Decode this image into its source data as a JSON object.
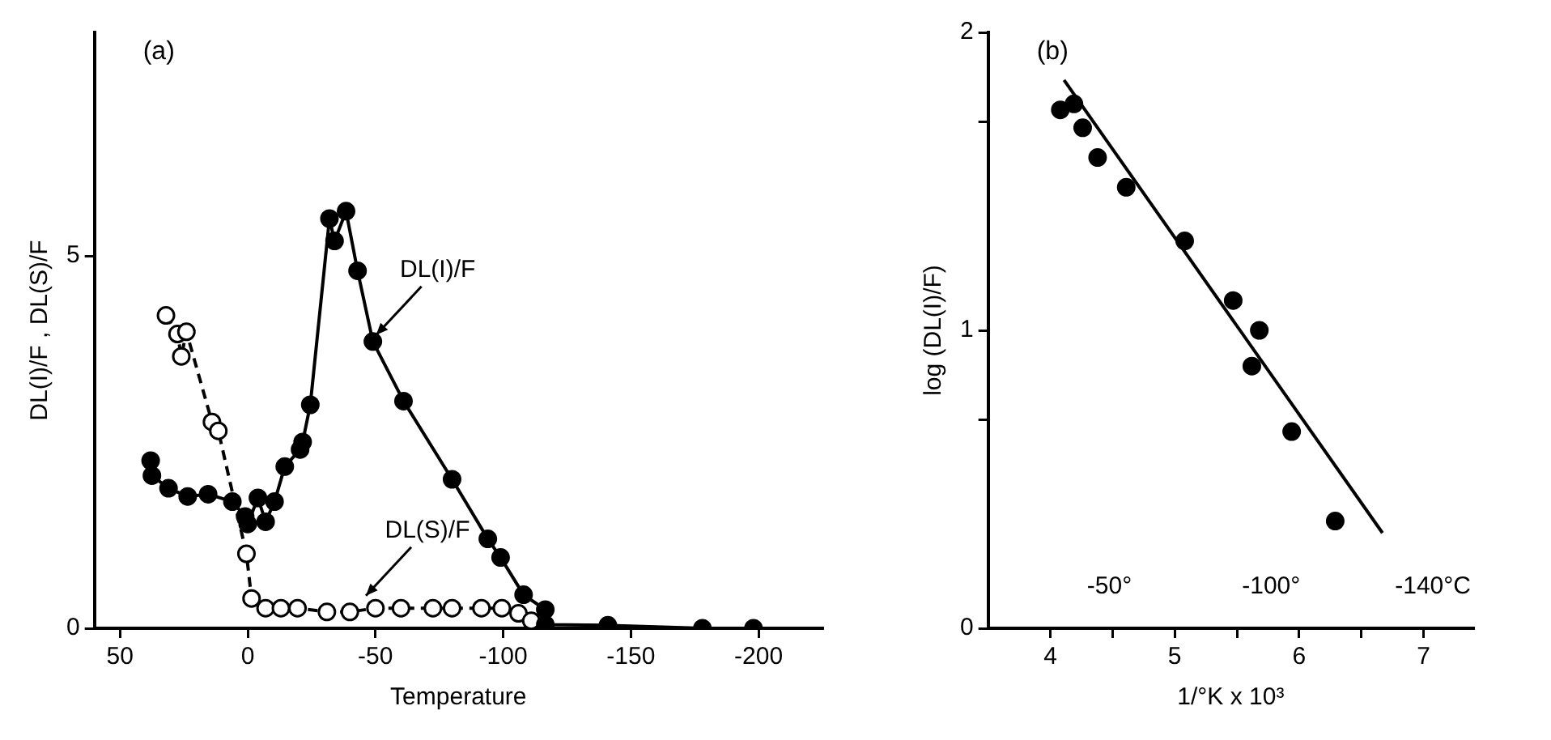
{
  "chart_data": [
    {
      "type": "line",
      "title": "(a)",
      "xlabel": "Temperature",
      "ylabel": "DL(I)/F , DL(S)/F",
      "xlim": [
        60,
        -225
      ],
      "xticks": [
        50,
        0,
        -50,
        -100,
        -150,
        -200
      ],
      "ylim": [
        0,
        8
      ],
      "yticks": [
        0,
        5
      ],
      "series": [
        {
          "color": "#000000",
          "marker": "circle",
          "line_style": "solid",
          "x": [
            38,
            37.5,
            31,
            23.5,
            15.5,
            6,
            1,
            0,
            -4,
            -7,
            -10.5,
            -14.5,
            -20.5,
            -21.5,
            -24.5,
            -32,
            -34,
            -38.5,
            -43,
            -49,
            -61,
            -80,
            -94,
            -99,
            -108,
            -116.5,
            -116.5,
            -141,
            -178,
            -198
          ],
          "values": [
            2.25,
            2.05,
            1.88,
            1.77,
            1.8,
            1.7,
            1.5,
            1.4,
            1.75,
            1.43,
            1.7,
            2.17,
            2.4,
            2.5,
            3.0,
            5.5,
            5.2,
            5.6,
            4.8,
            3.85,
            3.05,
            2.0,
            1.2,
            0.95,
            0.45,
            0.25,
            0.05,
            0.04,
            0,
            0
          ]
        },
        {
          "color": "#ffffff",
          "marker": "circle",
          "line_style": "dashed",
          "x": [
            32,
            27.5,
            26,
            24,
            14,
            11.5,
            0.5,
            -1.5,
            -7,
            -13,
            -19.5,
            -31,
            -40,
            -50,
            -60,
            -72.5,
            -80,
            -91.5,
            -99.5,
            -106,
            -111
          ],
          "values": [
            4.2,
            3.95,
            3.65,
            3.98,
            2.77,
            2.65,
            1.0,
            0.4,
            0.27,
            0.27,
            0.27,
            0.22,
            0.22,
            0.27,
            0.27,
            0.27,
            0.27,
            0.27,
            0.27,
            0.2,
            0.1
          ]
        }
      ],
      "annotations": [
        {
          "text": "DL(I)/F",
          "x": -49,
          "y": 3.85
        },
        {
          "text": "DL(S)/F",
          "x": -45,
          "y": 0.35
        }
      ]
    },
    {
      "type": "scatter",
      "title": "(b)",
      "xlabel": "1/°K x 10³",
      "ylabel": "log (DL(I)/F)",
      "xlim": [
        3.5,
        7.4
      ],
      "xticks": [
        4,
        {
          "value": 4.5,
          "label": null
        },
        5,
        {
          "value": 5.5,
          "label": null
        },
        6,
        {
          "value": 6.5,
          "label": null
        },
        7
      ],
      "ylim": [
        0,
        2
      ],
      "yticks": [
        0,
        {
          "value": 0.7,
          "label": null
        },
        1,
        {
          "value": 1.7,
          "label": null
        },
        2
      ],
      "annotations": [
        "-50°",
        "-100°",
        "-140°C"
      ],
      "series": [
        {
          "color": "#000000",
          "marker": "circle",
          "x": [
            4.08,
            4.19,
            4.26,
            4.38,
            4.61,
            5.08,
            5.47,
            5.68,
            5.62,
            5.94,
            6.29
          ],
          "values": [
            1.74,
            1.76,
            1.68,
            1.58,
            1.48,
            1.3,
            1.1,
            1.0,
            0.88,
            0.66,
            0.36
          ]
        },
        {
          "type": "line",
          "color": "#000000",
          "marker": "none",
          "line_style": "solid",
          "x": [
            4.11,
            6.67
          ],
          "values": [
            1.84,
            0.32
          ]
        }
      ]
    }
  ]
}
